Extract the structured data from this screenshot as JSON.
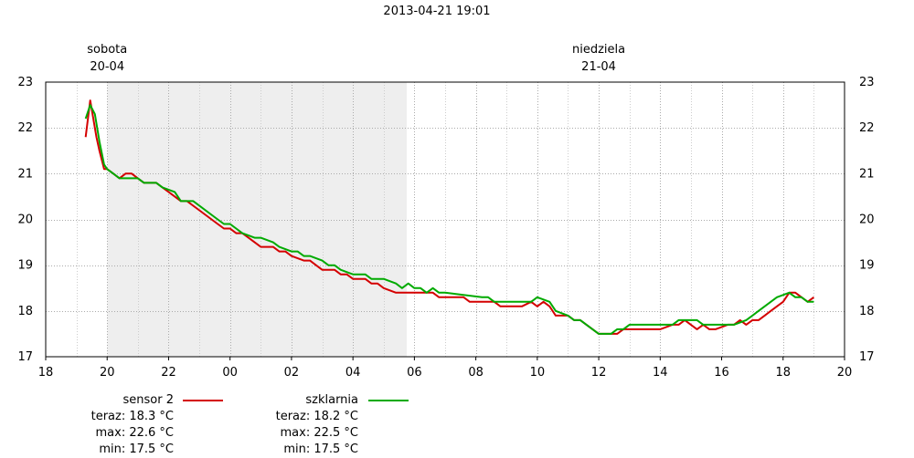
{
  "header": {
    "timestamp": "2013-04-21 19:01"
  },
  "chart_data": {
    "type": "line",
    "xlim": [
      18,
      44
    ],
    "ylim": [
      17,
      23
    ],
    "x_ticks": [
      {
        "v": 18,
        "label": "18"
      },
      {
        "v": 20,
        "label": "20"
      },
      {
        "v": 22,
        "label": "22"
      },
      {
        "v": 24,
        "label": "00"
      },
      {
        "v": 26,
        "label": "02"
      },
      {
        "v": 28,
        "label": "04"
      },
      {
        "v": 30,
        "label": "06"
      },
      {
        "v": 32,
        "label": "08"
      },
      {
        "v": 34,
        "label": "10"
      },
      {
        "v": 36,
        "label": "12"
      },
      {
        "v": 38,
        "label": "14"
      },
      {
        "v": 40,
        "label": "16"
      },
      {
        "v": 42,
        "label": "18"
      },
      {
        "v": 44,
        "label": "20"
      }
    ],
    "y_ticks": [
      17,
      18,
      19,
      20,
      21,
      22,
      23
    ],
    "grid": true,
    "shaded_period": [
      20,
      29.75
    ],
    "day_labels": [
      {
        "x": 20,
        "name": "sobota",
        "date": "20-04"
      },
      {
        "x": 36,
        "name": "niedziela",
        "date": "21-04"
      }
    ],
    "series": [
      {
        "name": "sensor 2",
        "color": "#d40000",
        "x": [
          19.3,
          19.45,
          19.55,
          19.65,
          19.75,
          19.9,
          20.0,
          20.2,
          20.4,
          20.6,
          20.8,
          21.0,
          21.2,
          21.4,
          21.6,
          21.8,
          22.0,
          22.2,
          22.4,
          22.6,
          23.0,
          23.2,
          23.4,
          23.6,
          23.8,
          24.0,
          24.2,
          24.4,
          24.6,
          24.8,
          25.0,
          25.4,
          25.6,
          25.8,
          26.0,
          26.4,
          26.6,
          26.8,
          27.0,
          27.4,
          27.6,
          27.8,
          28.0,
          28.4,
          28.6,
          28.8,
          29.0,
          29.4,
          29.6,
          29.8,
          30.0,
          30.6,
          30.8,
          31.0,
          31.6,
          31.8,
          32.0,
          32.6,
          32.8,
          33.0,
          33.5,
          33.8,
          34.0,
          34.2,
          34.4,
          34.6,
          35.0,
          35.2,
          35.4,
          35.6,
          36.0,
          36.2,
          36.6,
          36.8,
          37.0,
          37.8,
          38.0,
          38.4,
          38.6,
          38.8,
          39.0,
          39.2,
          39.4,
          39.6,
          39.8,
          40.2,
          40.4,
          40.6,
          40.8,
          41.0,
          41.2,
          41.4,
          41.6,
          41.8,
          42.0,
          42.2,
          42.4,
          42.8,
          43.0
        ],
        "values": [
          21.8,
          22.6,
          22.2,
          21.8,
          21.5,
          21.1,
          21.1,
          21.0,
          20.9,
          21.0,
          21.0,
          20.9,
          20.8,
          20.8,
          20.8,
          20.7,
          20.6,
          20.5,
          20.4,
          20.4,
          20.2,
          20.1,
          20.0,
          19.9,
          19.8,
          19.8,
          19.7,
          19.7,
          19.6,
          19.5,
          19.4,
          19.4,
          19.3,
          19.3,
          19.2,
          19.1,
          19.1,
          19.0,
          18.9,
          18.9,
          18.8,
          18.8,
          18.7,
          18.7,
          18.6,
          18.6,
          18.5,
          18.4,
          18.4,
          18.4,
          18.4,
          18.4,
          18.3,
          18.3,
          18.3,
          18.2,
          18.2,
          18.2,
          18.1,
          18.1,
          18.1,
          18.2,
          18.1,
          18.2,
          18.1,
          17.9,
          17.9,
          17.8,
          17.8,
          17.7,
          17.5,
          17.5,
          17.5,
          17.6,
          17.6,
          17.6,
          17.6,
          17.7,
          17.7,
          17.8,
          17.7,
          17.6,
          17.7,
          17.6,
          17.6,
          17.7,
          17.7,
          17.8,
          17.7,
          17.8,
          17.8,
          17.9,
          18.0,
          18.1,
          18.2,
          18.4,
          18.4,
          18.2,
          18.3
        ]
      },
      {
        "name": "szklarnia",
        "color": "#00aa00",
        "x": [
          19.3,
          19.45,
          19.6,
          19.75,
          19.9,
          20.0,
          20.2,
          20.4,
          20.8,
          21.0,
          21.2,
          21.6,
          21.8,
          22.2,
          22.4,
          22.8,
          23.0,
          23.4,
          23.6,
          23.8,
          24.0,
          24.2,
          24.4,
          24.8,
          25.0,
          25.4,
          25.6,
          26.0,
          26.2,
          26.4,
          26.6,
          27.0,
          27.2,
          27.4,
          27.6,
          28.0,
          28.4,
          28.6,
          28.8,
          29.0,
          29.4,
          29.6,
          29.8,
          30.0,
          30.2,
          30.4,
          30.6,
          30.8,
          31.0,
          32.2,
          32.4,
          32.6,
          33.8,
          34.0,
          34.4,
          34.6,
          35.0,
          35.2,
          35.4,
          35.6,
          36.0,
          36.4,
          36.6,
          36.8,
          37.0,
          38.4,
          38.6,
          39.2,
          39.4,
          40.4,
          40.8,
          41.0,
          41.2,
          41.4,
          41.6,
          41.8,
          42.2,
          42.4,
          42.6,
          42.8,
          43.0
        ],
        "values": [
          22.2,
          22.5,
          22.3,
          21.7,
          21.2,
          21.1,
          21.0,
          20.9,
          20.9,
          20.9,
          20.8,
          20.8,
          20.7,
          20.6,
          20.4,
          20.4,
          20.3,
          20.1,
          20.0,
          19.9,
          19.9,
          19.8,
          19.7,
          19.6,
          19.6,
          19.5,
          19.4,
          19.3,
          19.3,
          19.2,
          19.2,
          19.1,
          19.0,
          19.0,
          18.9,
          18.8,
          18.8,
          18.7,
          18.7,
          18.7,
          18.6,
          18.5,
          18.6,
          18.5,
          18.5,
          18.4,
          18.5,
          18.4,
          18.4,
          18.3,
          18.3,
          18.2,
          18.2,
          18.3,
          18.2,
          18.0,
          17.9,
          17.8,
          17.8,
          17.7,
          17.5,
          17.5,
          17.6,
          17.6,
          17.7,
          17.7,
          17.8,
          17.8,
          17.7,
          17.7,
          17.8,
          17.9,
          18.0,
          18.1,
          18.2,
          18.3,
          18.4,
          18.3,
          18.3,
          18.2,
          18.2
        ]
      }
    ]
  },
  "legend": [
    {
      "name": "sensor 2",
      "color": "#d40000",
      "teraz": "teraz: 18.3 °C",
      "max": "max: 22.6 °C",
      "min": "min: 17.5 °C"
    },
    {
      "name": "szklarnia",
      "color": "#00aa00",
      "teraz": "teraz: 18.2 °C",
      "max": "max: 22.5 °C",
      "min": "min: 17.5 °C"
    }
  ]
}
